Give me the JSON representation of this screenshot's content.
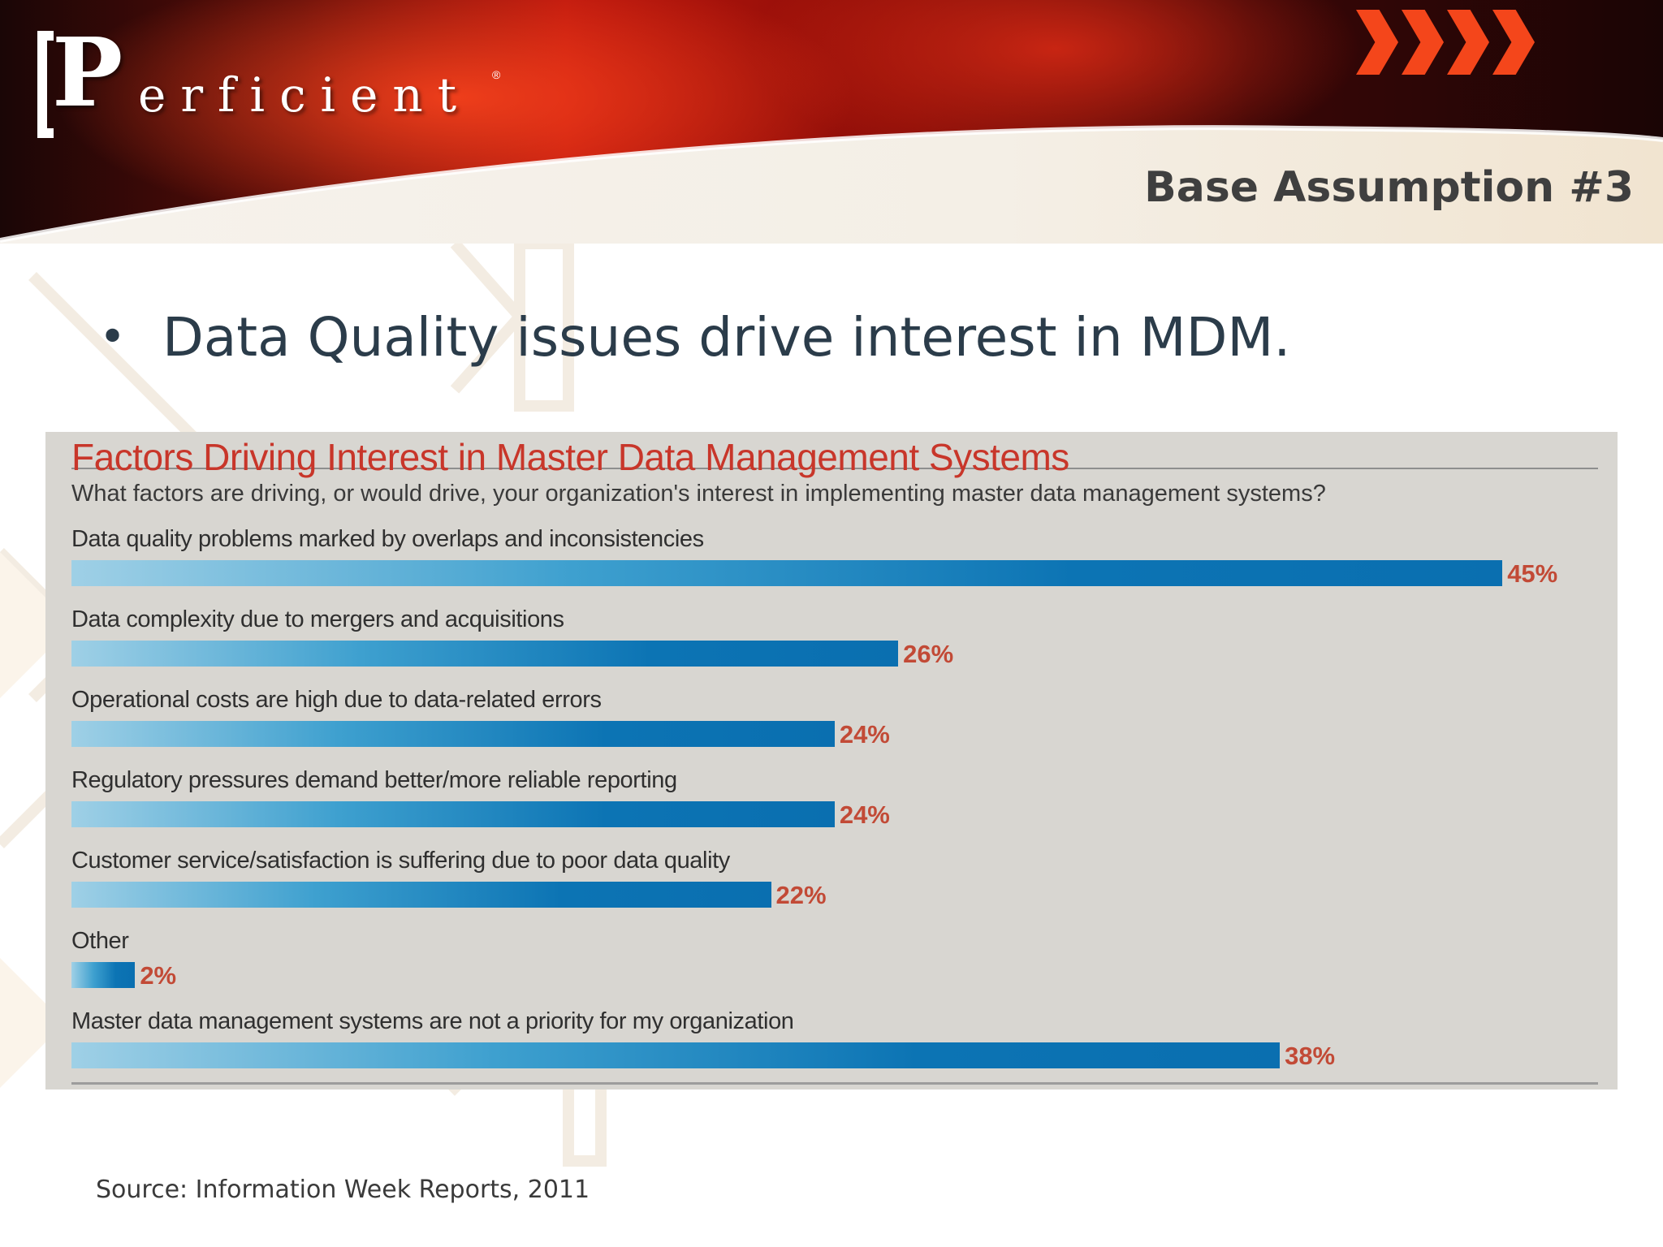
{
  "header": {
    "logo_initial": "P",
    "logo_rest": "erficient",
    "logo_registered": "®",
    "title": "Base Assumption #3"
  },
  "bullet": {
    "symbol": "•",
    "text": "Data Quality issues drive interest in MDM."
  },
  "chart_data": {
    "type": "bar",
    "orientation": "horizontal",
    "title": "Factors Driving Interest in Master Data Management Systems",
    "subtitle": "What factors are driving, or would drive, your organization's interest in implementing master data management systems?",
    "categories": [
      "Data quality problems marked by overlaps and inconsistencies",
      "Data complexity due to mergers and acquisitions",
      "Operational costs are high due to data-related errors",
      "Regulatory pressures demand better/more reliable reporting",
      "Customer service/satisfaction is suffering due to poor data quality",
      "Other",
      "Master data management systems are not a priority for my organization"
    ],
    "values": [
      45,
      26,
      24,
      24,
      22,
      2,
      38
    ],
    "value_labels": [
      "45%",
      "26%",
      "24%",
      "24%",
      "22%",
      "2%",
      "38%"
    ],
    "unit": "%",
    "xlim": [
      0,
      50
    ],
    "grid": false,
    "legend": "none",
    "bar_color": "#0a6fb0",
    "label_color": "#c24a36",
    "title_color": "#c8362a"
  },
  "source": "Source: Information Week Reports, 2011",
  "colors": {
    "banner_red": "#b8140c",
    "text_dark": "#2b3c4a",
    "chart_background": "#d8d6d1"
  }
}
